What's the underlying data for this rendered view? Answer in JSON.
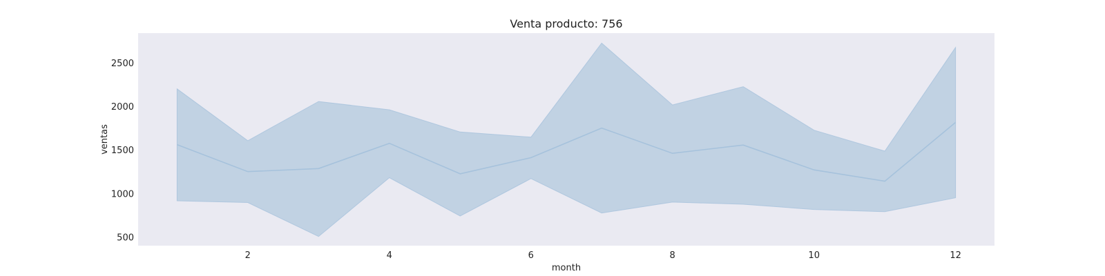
{
  "chart_data": {
    "type": "line",
    "title": "Venta producto: 756",
    "xlabel": "month",
    "ylabel": "ventas",
    "x": [
      1,
      2,
      3,
      4,
      5,
      6,
      7,
      8,
      9,
      10,
      11,
      12
    ],
    "series": [
      {
        "values": [
          1560,
          1250,
          1285,
          1575,
          1225,
          1410,
          1750,
          1460,
          1555,
          1270,
          1140,
          1815
        ],
        "band_upper": [
          2200,
          1605,
          2055,
          1960,
          1705,
          1645,
          2725,
          2015,
          2225,
          1725,
          1485,
          2675
        ],
        "band_lower": [
          915,
          895,
          505,
          1180,
          740,
          1170,
          775,
          900,
          875,
          815,
          790,
          950
        ]
      }
    ],
    "xticks": [
      2,
      4,
      6,
      8,
      10,
      12
    ],
    "yticks": [
      500,
      1000,
      1500,
      2000,
      2500
    ],
    "xlim": [
      0.45,
      12.55
    ],
    "ylim": [
      400,
      2840
    ],
    "grid": false,
    "colors": {
      "plot_background": "#eaeaf2",
      "line": "#a6c2dc",
      "band_fill": "#c1d2e3"
    }
  }
}
